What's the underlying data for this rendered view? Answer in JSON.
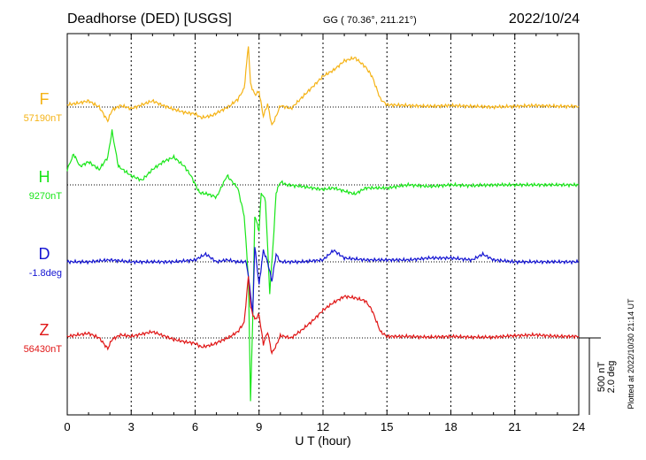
{
  "header": {
    "station": "Deadhorse (DED)  [USGS]",
    "coords": "GG ( 70.36°, 211.21°)",
    "date": "2022/10/24"
  },
  "footer": {
    "plotted": "Plotted at 2022/10/30 21:14 UT"
  },
  "scale_bar": {
    "nt": "500 nT",
    "deg": "2.0 deg"
  },
  "chart_data": {
    "type": "line",
    "title": "Deadhorse (DED)  [USGS]",
    "xlabel": "U T (hour)",
    "xlim": [
      0,
      24
    ],
    "xticks": [
      "0",
      "3",
      "6",
      "9",
      "12",
      "15",
      "18",
      "21",
      "24"
    ],
    "grid": true,
    "units_per_scale_bar": {
      "nT": 500,
      "deg": 2.0
    },
    "series": [
      {
        "name": "F",
        "baseline_label": "57190nT",
        "color": "#f5b316",
        "unit": "nT",
        "x": [
          0,
          0.5,
          1,
          1.5,
          1.9,
          2.1,
          2.5,
          3,
          3.5,
          4,
          4.5,
          5,
          5.5,
          6,
          6.3,
          6.8,
          7.2,
          7.6,
          8,
          8.3,
          8.5,
          8.6,
          8.8,
          9,
          9.2,
          9.4,
          9.6,
          9.8,
          10,
          10.5,
          11,
          11.5,
          12,
          12.5,
          13,
          13.5,
          14,
          14.3,
          14.7,
          15,
          16,
          17,
          18,
          19,
          20,
          21,
          22,
          23,
          24
        ],
        "y": [
          15,
          25,
          40,
          0,
          -90,
          -20,
          10,
          -10,
          15,
          40,
          10,
          -15,
          -35,
          -45,
          -70,
          -55,
          -25,
          5,
          50,
          120,
          400,
          150,
          80,
          100,
          -60,
          20,
          -120,
          -60,
          10,
          -10,
          60,
          130,
          200,
          240,
          300,
          320,
          260,
          200,
          50,
          15,
          10,
          5,
          10,
          5,
          0,
          5,
          10,
          5,
          5
        ]
      },
      {
        "name": "H",
        "baseline_label": "9270nT",
        "color": "#19e619",
        "unit": "nT",
        "x": [
          0,
          0.3,
          0.6,
          1,
          1.5,
          1.9,
          2.1,
          2.4,
          3,
          3.5,
          4,
          4.5,
          5,
          5.5,
          5.8,
          6.2,
          6.6,
          7,
          7.5,
          8,
          8.3,
          8.5,
          8.6,
          8.7,
          8.8,
          9,
          9.1,
          9.3,
          9.5,
          9.7,
          9.8,
          10,
          10.3,
          11,
          12,
          12.5,
          13,
          13.5,
          14,
          15,
          16,
          17,
          18,
          19,
          20,
          21,
          22,
          23,
          24
        ],
        "y": [
          100,
          200,
          120,
          150,
          100,
          180,
          350,
          120,
          60,
          30,
          100,
          150,
          180,
          120,
          60,
          -50,
          -60,
          -80,
          60,
          -20,
          -200,
          -600,
          -1400,
          -900,
          -200,
          -300,
          -50,
          -100,
          -700,
          -300,
          -50,
          20,
          0,
          -10,
          -30,
          -20,
          -40,
          -60,
          -20,
          -20,
          0,
          -10,
          0,
          -5,
          0,
          0,
          0,
          0,
          0
        ]
      },
      {
        "name": "D",
        "baseline_label": "-1.8deg",
        "color": "#1414d2",
        "unit": "deg",
        "x": [
          0,
          1,
          2,
          3,
          4,
          5,
          6,
          6.5,
          7,
          7.5,
          8,
          8.4,
          8.6,
          8.7,
          8.8,
          9,
          9.2,
          9.4,
          9.6,
          9.8,
          10,
          11,
          12,
          12.5,
          13,
          14,
          15,
          16,
          17,
          18,
          19,
          19.5,
          20,
          21,
          22,
          23,
          24
        ],
        "y": [
          0,
          0,
          0.05,
          0,
          0,
          0,
          0.05,
          0.2,
          0,
          0.05,
          0,
          0,
          -0.8,
          -1.4,
          0.4,
          -0.6,
          0.3,
          0,
          -0.5,
          0.2,
          0,
          0,
          0.05,
          0.3,
          0.1,
          0.05,
          0.05,
          0.05,
          0.1,
          0.1,
          0.05,
          0.2,
          0.05,
          0,
          0,
          0,
          0
        ]
      },
      {
        "name": "Z",
        "baseline_label": "56430nT",
        "color": "#e01616",
        "unit": "nT",
        "x": [
          0,
          0.5,
          1,
          1.5,
          1.9,
          2.1,
          2.5,
          3,
          3.5,
          4,
          4.5,
          5,
          5.5,
          6,
          6.3,
          6.8,
          7.2,
          7.6,
          8,
          8.3,
          8.5,
          8.6,
          8.8,
          9,
          9.2,
          9.4,
          9.6,
          9.8,
          10,
          10.5,
          11,
          11.5,
          12,
          12.5,
          13,
          13.5,
          14,
          14.3,
          14.7,
          15,
          16,
          17,
          18,
          19,
          20,
          21,
          22,
          23,
          24
        ],
        "y": [
          10,
          20,
          30,
          0,
          -70,
          -10,
          20,
          10,
          25,
          40,
          15,
          -10,
          -25,
          -35,
          -60,
          -45,
          -20,
          5,
          40,
          100,
          400,
          200,
          120,
          150,
          -40,
          40,
          -100,
          -50,
          15,
          0,
          50,
          110,
          180,
          230,
          270,
          260,
          240,
          180,
          40,
          10,
          10,
          5,
          10,
          5,
          5,
          15,
          20,
          10,
          10
        ]
      }
    ]
  }
}
